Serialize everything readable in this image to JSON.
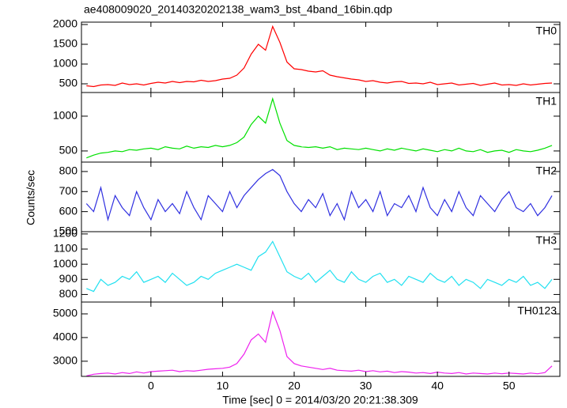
{
  "chart_data": {
    "type": "line",
    "title": "ae408009020_20140320202138_wam3_bst_4band_16bin.qdp",
    "xlabel": "Time [sec] 0 = 2014/03/20 20:21:38.309",
    "ylabel": "Counts/sec",
    "xlim": [
      -9.7,
      57.1
    ],
    "xticks": [
      0,
      10,
      20,
      30,
      40,
      50
    ],
    "x": [
      -9,
      -8,
      -7,
      -6,
      -5,
      -4,
      -3,
      -2,
      -1,
      0,
      1,
      2,
      3,
      4,
      5,
      6,
      7,
      8,
      9,
      10,
      11,
      12,
      13,
      14,
      15,
      16,
      17,
      18,
      19,
      20,
      21,
      22,
      23,
      24,
      25,
      26,
      27,
      28,
      29,
      30,
      31,
      32,
      33,
      34,
      35,
      36,
      37,
      38,
      39,
      40,
      41,
      42,
      43,
      44,
      45,
      46,
      47,
      48,
      49,
      50,
      51,
      52,
      53,
      54,
      55,
      56
    ],
    "panels": [
      {
        "name": "TH0",
        "color": "#ff0000",
        "ylim": [
          280,
          2060
        ],
        "yticks": [
          500,
          1000,
          1500,
          2000
        ],
        "values": [
          450,
          430,
          470,
          480,
          460,
          520,
          480,
          500,
          470,
          510,
          540,
          520,
          560,
          530,
          560,
          550,
          590,
          560,
          580,
          620,
          640,
          720,
          900,
          1250,
          1500,
          1350,
          1950,
          1550,
          1050,
          880,
          860,
          820,
          800,
          830,
          720,
          680,
          650,
          620,
          600,
          560,
          580,
          540,
          520,
          550,
          560,
          510,
          520,
          500,
          540,
          480,
          500,
          520,
          470,
          490,
          510,
          460,
          490,
          520,
          470,
          480,
          460,
          500,
          470,
          490,
          510,
          520
        ]
      },
      {
        "name": "TH1",
        "color": "#00e000",
        "ylim": [
          340,
          1340
        ],
        "yticks": [
          500,
          1000
        ],
        "values": [
          400,
          440,
          470,
          480,
          500,
          490,
          520,
          510,
          530,
          540,
          520,
          560,
          540,
          530,
          570,
          540,
          560,
          550,
          580,
          560,
          580,
          620,
          700,
          880,
          1000,
          900,
          1250,
          900,
          650,
          580,
          560,
          550,
          560,
          540,
          560,
          520,
          540,
          530,
          520,
          540,
          520,
          500,
          530,
          510,
          540,
          520,
          500,
          530,
          510,
          490,
          520,
          500,
          540,
          500,
          490,
          520,
          480,
          500,
          510,
          480,
          520,
          500,
          490,
          510,
          540,
          580
        ]
      },
      {
        "name": "TH2",
        "color": "#3030e0",
        "ylim": [
          500,
          847
        ],
        "yticks": [
          500,
          600,
          700,
          800
        ],
        "values": [
          640,
          600,
          720,
          560,
          680,
          620,
          580,
          700,
          620,
          560,
          660,
          600,
          640,
          590,
          700,
          620,
          560,
          680,
          640,
          600,
          700,
          620,
          680,
          720,
          760,
          790,
          810,
          780,
          700,
          640,
          600,
          660,
          620,
          690,
          580,
          640,
          560,
          700,
          620,
          660,
          600,
          700,
          580,
          640,
          620,
          680,
          600,
          720,
          620,
          580,
          660,
          600,
          700,
          620,
          580,
          680,
          640,
          600,
          660,
          700,
          620,
          600,
          640,
          580,
          620,
          680
        ]
      },
      {
        "name": "TH3",
        "color": "#20e0f0",
        "ylim": [
          750,
          1215
        ],
        "yticks": [
          800,
          900,
          1000,
          1100,
          1200
        ],
        "values": [
          840,
          820,
          900,
          860,
          880,
          920,
          900,
          950,
          880,
          900,
          920,
          880,
          940,
          900,
          860,
          880,
          920,
          900,
          940,
          960,
          980,
          1000,
          980,
          960,
          1050,
          1080,
          1150,
          1050,
          950,
          920,
          900,
          940,
          880,
          920,
          960,
          900,
          880,
          950,
          900,
          880,
          920,
          940,
          880,
          900,
          860,
          920,
          900,
          880,
          940,
          900,
          880,
          920,
          860,
          900,
          880,
          840,
          900,
          880,
          860,
          900,
          880,
          920,
          860,
          880,
          840,
          900
        ]
      },
      {
        "name": "TH0123",
        "color": "#ee20ee",
        "ylim": [
          2360,
          5500
        ],
        "yticks": [
          3000,
          4000,
          5000
        ],
        "values": [
          2380,
          2450,
          2480,
          2500,
          2460,
          2520,
          2480,
          2550,
          2500,
          2560,
          2580,
          2600,
          2620,
          2560,
          2600,
          2580,
          2620,
          2660,
          2680,
          2700,
          2750,
          2900,
          3300,
          3900,
          4150,
          3800,
          5100,
          4300,
          3200,
          2900,
          2800,
          2750,
          2700,
          2650,
          2700,
          2620,
          2600,
          2580,
          2620,
          2560,
          2600,
          2550,
          2580,
          2520,
          2560,
          2540,
          2500,
          2520,
          2480,
          2540,
          2500,
          2480,
          2520,
          2460,
          2500,
          2480,
          2460,
          2500,
          2470,
          2500,
          2480,
          2460,
          2500,
          2470,
          2520,
          2800
        ]
      }
    ]
  }
}
